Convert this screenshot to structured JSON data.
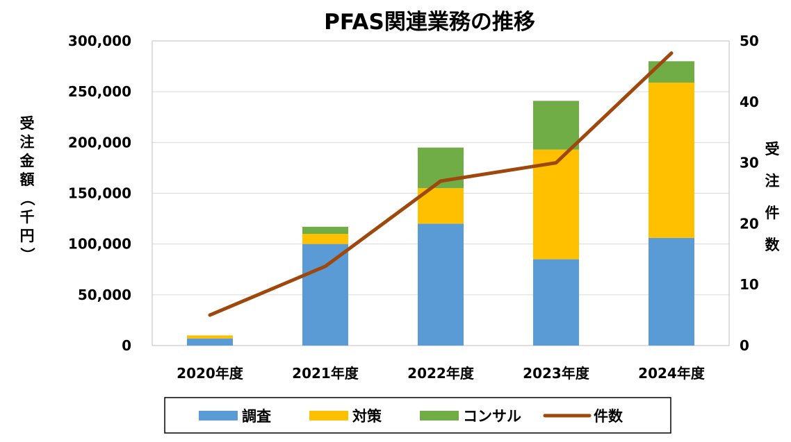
{
  "chart_data": {
    "type": "bar",
    "stacked": true,
    "title": "PFAS関連業務の推移",
    "categories": [
      "2020年度",
      "2021年度",
      "2022年度",
      "2023年度",
      "2024年度"
    ],
    "series": [
      {
        "name": "調査",
        "kind": "bar",
        "axis": "left",
        "color": "#5B9BD5",
        "values": [
          7000,
          100000,
          120000,
          85000,
          106000
        ]
      },
      {
        "name": "対策",
        "kind": "bar",
        "axis": "left",
        "color": "#FFC000",
        "values": [
          3000,
          10000,
          35000,
          108000,
          153000
        ]
      },
      {
        "name": "コンサル",
        "kind": "bar",
        "axis": "left",
        "color": "#70AD47",
        "values": [
          0,
          7000,
          40000,
          48000,
          21000
        ]
      },
      {
        "name": "件数",
        "kind": "line",
        "axis": "right",
        "color": "#9E480E",
        "values": [
          5,
          13,
          27,
          30,
          48
        ]
      }
    ],
    "y_left": {
      "label": "受注金額（千円）",
      "ylim": [
        0,
        300000
      ],
      "ticks": [
        "0",
        "50,000",
        "100,000",
        "150,000",
        "200,000",
        "250,000",
        "300,000"
      ]
    },
    "y_right": {
      "label": "受注件数",
      "ylim": [
        0,
        50
      ],
      "ticks": [
        "0",
        "10",
        "20",
        "30",
        "40",
        "50"
      ]
    },
    "legend_position": "bottom",
    "grid": "horizontal"
  }
}
